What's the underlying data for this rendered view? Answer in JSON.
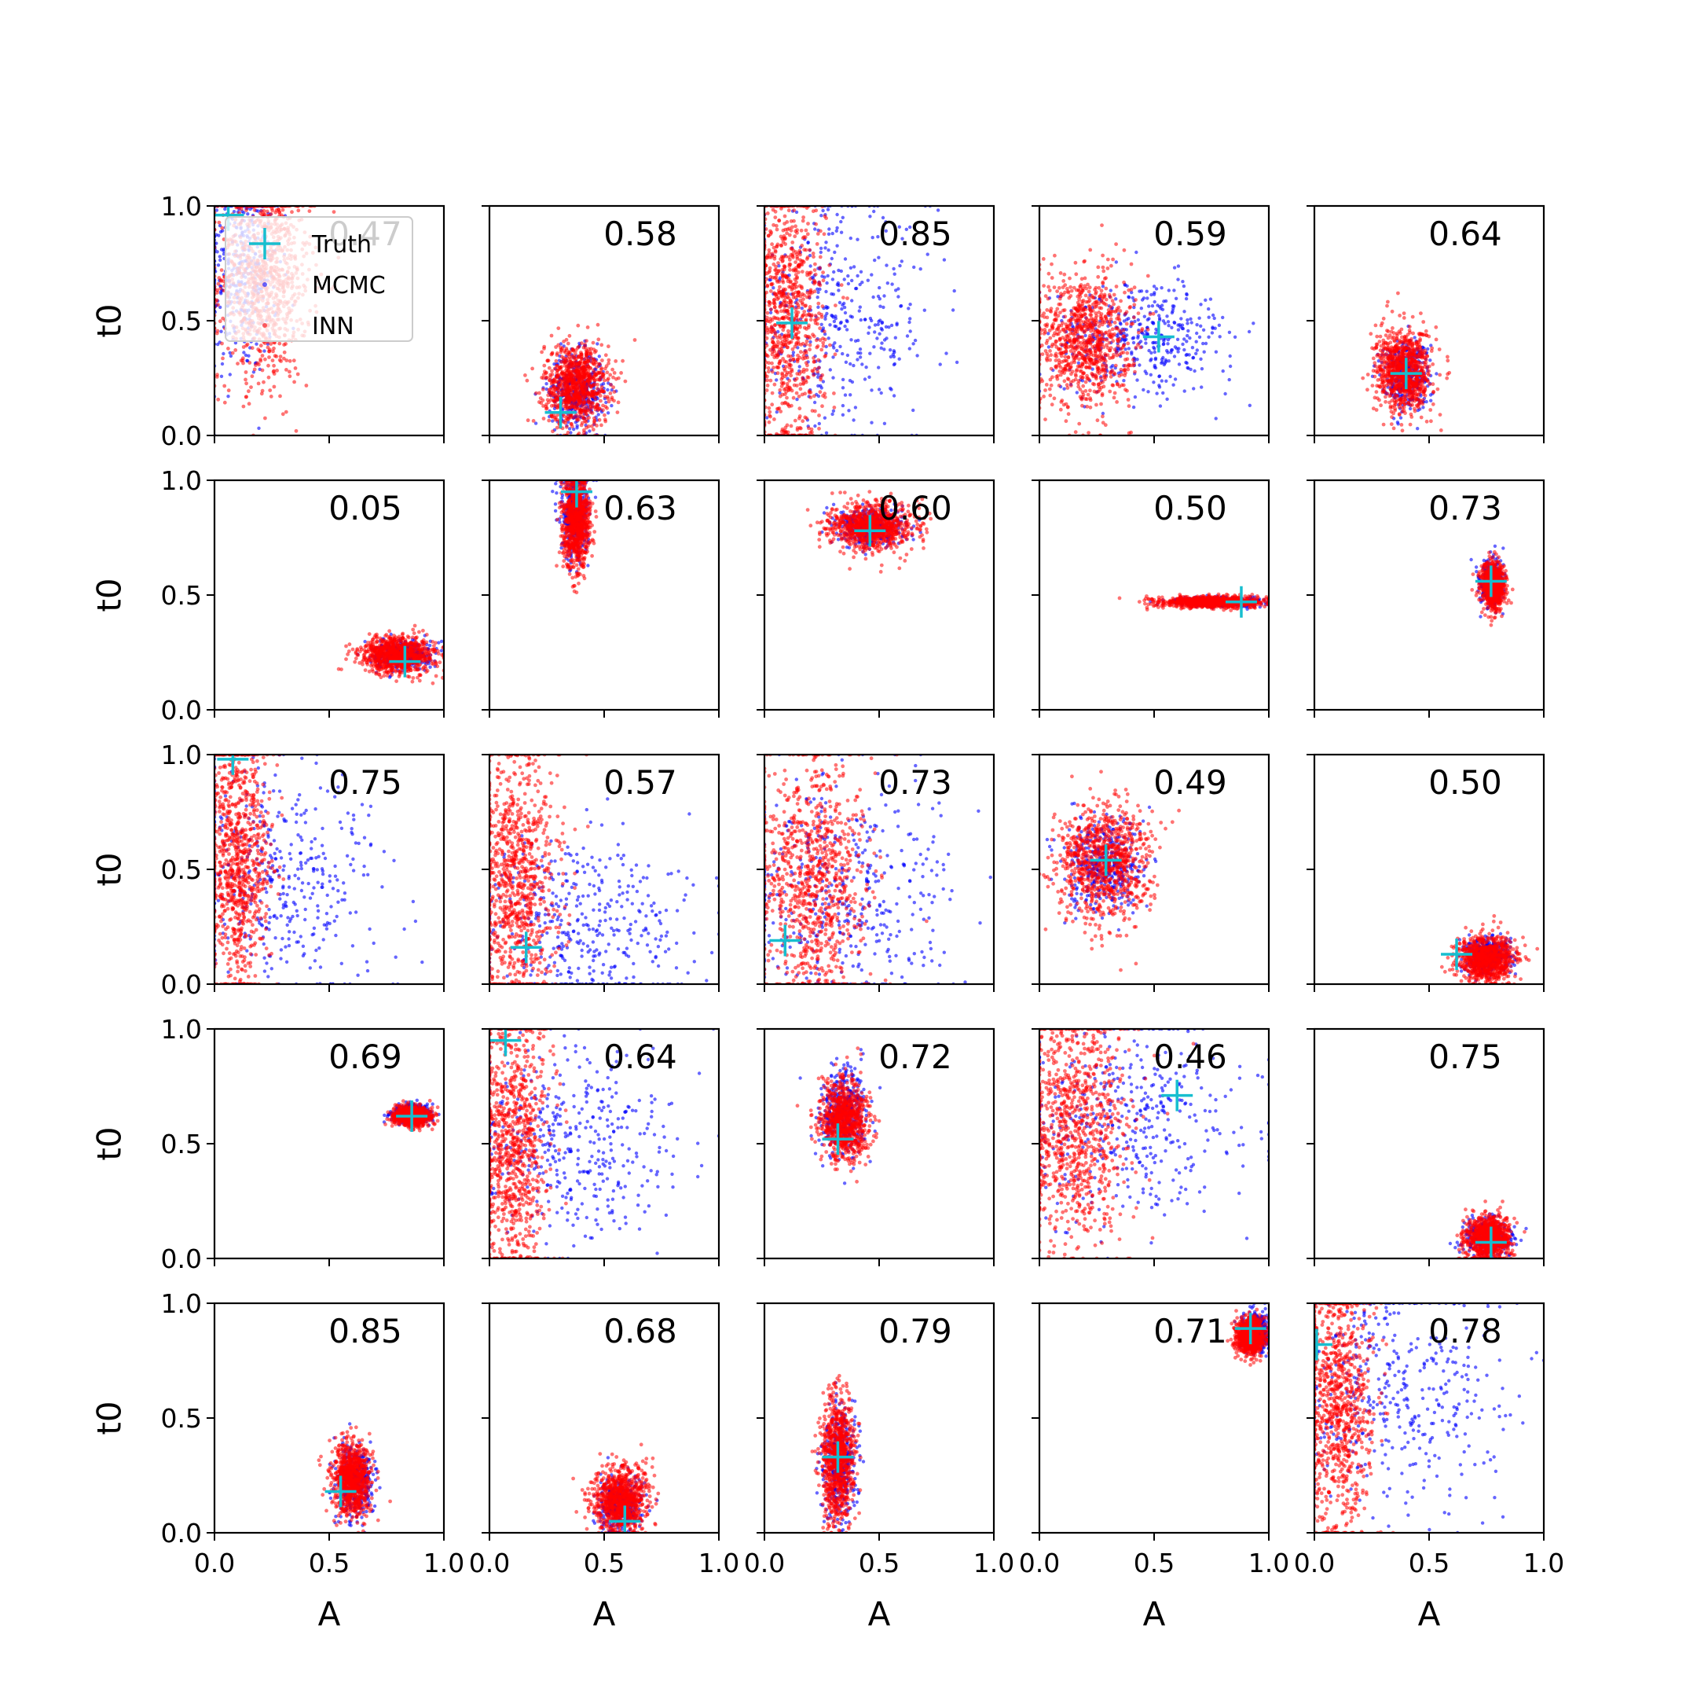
{
  "chart_data": {
    "type": "scatter",
    "layout": {
      "rows": 5,
      "cols": 5
    },
    "xlabel": "A",
    "ylabel": "t0",
    "xlim": [
      0.0,
      1.0
    ],
    "ylim": [
      0.0,
      1.0
    ],
    "xticks": [
      "0.0",
      "0.5",
      "1.0"
    ],
    "yticks": [
      "0.0",
      "0.5",
      "1.0"
    ],
    "legend": {
      "placement": "upper-left of first panel",
      "entries": [
        {
          "label": "Truth",
          "marker": "plus",
          "color": "#17becf"
        },
        {
          "label": "MCMC",
          "marker": "dot",
          "color": "#0000ff"
        },
        {
          "label": "INN",
          "marker": "dot",
          "color": "#ff0000"
        }
      ]
    },
    "colors": {
      "truth": "#17becf",
      "mcmc": "#0000ff",
      "inn": "#ff0000"
    },
    "panels": [
      {
        "score": "0.47",
        "truth": [
          0.06,
          0.96
        ],
        "inn": {
          "cx": 0.22,
          "cy": 0.68,
          "sx": 0.1,
          "sy": 0.22
        },
        "mcmc": {
          "cx": 0.12,
          "cy": 0.75,
          "sx": 0.08,
          "sy": 0.25
        }
      },
      {
        "score": "0.58",
        "truth": [
          0.31,
          0.1
        ],
        "inn": {
          "cx": 0.38,
          "cy": 0.22,
          "sx": 0.07,
          "sy": 0.09
        },
        "mcmc": {
          "cx": 0.38,
          "cy": 0.2,
          "sx": 0.06,
          "sy": 0.08
        }
      },
      {
        "score": "0.85",
        "truth": [
          0.12,
          0.49
        ],
        "inn": {
          "cx": 0.1,
          "cy": 0.5,
          "sx": 0.08,
          "sy": 0.28
        },
        "mcmc": {
          "cx": 0.3,
          "cy": 0.5,
          "sx": 0.22,
          "sy": 0.25
        }
      },
      {
        "score": "0.59",
        "truth": [
          0.52,
          0.43
        ],
        "inn": {
          "cx": 0.2,
          "cy": 0.42,
          "sx": 0.1,
          "sy": 0.15
        },
        "mcmc": {
          "cx": 0.45,
          "cy": 0.43,
          "sx": 0.2,
          "sy": 0.12
        }
      },
      {
        "score": "0.64",
        "truth": [
          0.4,
          0.27
        ],
        "inn": {
          "cx": 0.39,
          "cy": 0.28,
          "sx": 0.06,
          "sy": 0.09
        },
        "mcmc": {
          "cx": 0.4,
          "cy": 0.27,
          "sx": 0.05,
          "sy": 0.07
        }
      },
      {
        "score": "0.05",
        "truth": [
          0.83,
          0.21
        ],
        "inn": {
          "cx": 0.8,
          "cy": 0.24,
          "sx": 0.08,
          "sy": 0.04
        },
        "mcmc": {
          "cx": 0.82,
          "cy": 0.24,
          "sx": 0.06,
          "sy": 0.03
        }
      },
      {
        "score": "0.63",
        "truth": [
          0.38,
          0.95
        ],
        "inn": {
          "cx": 0.38,
          "cy": 0.82,
          "sx": 0.03,
          "sy": 0.1
        },
        "mcmc": {
          "cx": 0.37,
          "cy": 0.85,
          "sx": 0.03,
          "sy": 0.1
        }
      },
      {
        "score": "0.60",
        "truth": [
          0.46,
          0.78
        ],
        "inn": {
          "cx": 0.47,
          "cy": 0.8,
          "sx": 0.09,
          "sy": 0.05
        },
        "mcmc": {
          "cx": 0.47,
          "cy": 0.8,
          "sx": 0.07,
          "sy": 0.04
        }
      },
      {
        "score": "0.50",
        "truth": [
          0.88,
          0.47
        ],
        "inn": {
          "cx": 0.75,
          "cy": 0.47,
          "sx": 0.11,
          "sy": 0.012
        },
        "mcmc": {
          "cx": 0.8,
          "cy": 0.47,
          "sx": 0.09,
          "sy": 0.01
        }
      },
      {
        "score": "0.73",
        "truth": [
          0.77,
          0.56
        ],
        "inn": {
          "cx": 0.78,
          "cy": 0.54,
          "sx": 0.025,
          "sy": 0.05
        },
        "mcmc": {
          "cx": 0.77,
          "cy": 0.55,
          "sx": 0.025,
          "sy": 0.05
        }
      },
      {
        "score": "0.75",
        "truth": [
          0.08,
          0.98
        ],
        "inn": {
          "cx": 0.1,
          "cy": 0.55,
          "sx": 0.07,
          "sy": 0.28
        },
        "mcmc": {
          "cx": 0.3,
          "cy": 0.45,
          "sx": 0.22,
          "sy": 0.25
        }
      },
      {
        "score": "0.57",
        "truth": [
          0.16,
          0.16
        ],
        "inn": {
          "cx": 0.12,
          "cy": 0.45,
          "sx": 0.09,
          "sy": 0.28
        },
        "mcmc": {
          "cx": 0.4,
          "cy": 0.25,
          "sx": 0.25,
          "sy": 0.2
        }
      },
      {
        "score": "0.73",
        "truth": [
          0.09,
          0.19
        ],
        "inn": {
          "cx": 0.2,
          "cy": 0.45,
          "sx": 0.12,
          "sy": 0.28
        },
        "mcmc": {
          "cx": 0.35,
          "cy": 0.4,
          "sx": 0.25,
          "sy": 0.25
        }
      },
      {
        "score": "0.49",
        "truth": [
          0.29,
          0.54
        ],
        "inn": {
          "cx": 0.28,
          "cy": 0.52,
          "sx": 0.1,
          "sy": 0.13
        },
        "mcmc": {
          "cx": 0.28,
          "cy": 0.52,
          "sx": 0.08,
          "sy": 0.1
        }
      },
      {
        "score": "0.50",
        "truth": [
          0.62,
          0.13
        ],
        "inn": {
          "cx": 0.75,
          "cy": 0.11,
          "sx": 0.06,
          "sy": 0.05
        },
        "mcmc": {
          "cx": 0.75,
          "cy": 0.12,
          "sx": 0.05,
          "sy": 0.04
        }
      },
      {
        "score": "0.69",
        "truth": [
          0.86,
          0.62
        ],
        "inn": {
          "cx": 0.86,
          "cy": 0.62,
          "sx": 0.04,
          "sy": 0.02
        },
        "mcmc": {
          "cx": 0.86,
          "cy": 0.63,
          "sx": 0.04,
          "sy": 0.02
        }
      },
      {
        "score": "0.64",
        "truth": [
          0.07,
          0.95
        ],
        "inn": {
          "cx": 0.1,
          "cy": 0.5,
          "sx": 0.08,
          "sy": 0.28
        },
        "mcmc": {
          "cx": 0.35,
          "cy": 0.5,
          "sx": 0.22,
          "sy": 0.22
        }
      },
      {
        "score": "0.72",
        "truth": [
          0.32,
          0.52
        ],
        "inn": {
          "cx": 0.35,
          "cy": 0.6,
          "sx": 0.05,
          "sy": 0.09
        },
        "mcmc": {
          "cx": 0.34,
          "cy": 0.64,
          "sx": 0.05,
          "sy": 0.09
        }
      },
      {
        "score": "0.46",
        "truth": [
          0.6,
          0.71
        ],
        "inn": {
          "cx": 0.15,
          "cy": 0.55,
          "sx": 0.12,
          "sy": 0.25
        },
        "mcmc": {
          "cx": 0.4,
          "cy": 0.6,
          "sx": 0.25,
          "sy": 0.22
        }
      },
      {
        "score": "0.75",
        "truth": [
          0.77,
          0.07
        ],
        "inn": {
          "cx": 0.76,
          "cy": 0.09,
          "sx": 0.05,
          "sy": 0.05
        },
        "mcmc": {
          "cx": 0.76,
          "cy": 0.09,
          "sx": 0.05,
          "sy": 0.04
        }
      },
      {
        "score": "0.85",
        "truth": [
          0.55,
          0.18
        ],
        "inn": {
          "cx": 0.6,
          "cy": 0.24,
          "sx": 0.04,
          "sy": 0.08
        },
        "mcmc": {
          "cx": 0.61,
          "cy": 0.22,
          "sx": 0.04,
          "sy": 0.08
        }
      },
      {
        "score": "0.68",
        "truth": [
          0.59,
          0.05
        ],
        "inn": {
          "cx": 0.57,
          "cy": 0.14,
          "sx": 0.06,
          "sy": 0.07
        },
        "mcmc": {
          "cx": 0.57,
          "cy": 0.12,
          "sx": 0.05,
          "sy": 0.06
        }
      },
      {
        "score": "0.79",
        "truth": [
          0.32,
          0.33
        ],
        "inn": {
          "cx": 0.32,
          "cy": 0.33,
          "sx": 0.035,
          "sy": 0.13
        },
        "mcmc": {
          "cx": 0.33,
          "cy": 0.3,
          "sx": 0.035,
          "sy": 0.12
        }
      },
      {
        "score": "0.71",
        "truth": [
          0.92,
          0.89
        ],
        "inn": {
          "cx": 0.92,
          "cy": 0.86,
          "sx": 0.03,
          "sy": 0.04
        },
        "mcmc": {
          "cx": 0.94,
          "cy": 0.88,
          "sx": 0.03,
          "sy": 0.04
        }
      },
      {
        "score": "0.78",
        "truth": [
          0.01,
          0.82
        ],
        "inn": {
          "cx": 0.1,
          "cy": 0.55,
          "sx": 0.08,
          "sy": 0.28
        },
        "mcmc": {
          "cx": 0.35,
          "cy": 0.6,
          "sx": 0.25,
          "sy": 0.25
        }
      }
    ]
  }
}
